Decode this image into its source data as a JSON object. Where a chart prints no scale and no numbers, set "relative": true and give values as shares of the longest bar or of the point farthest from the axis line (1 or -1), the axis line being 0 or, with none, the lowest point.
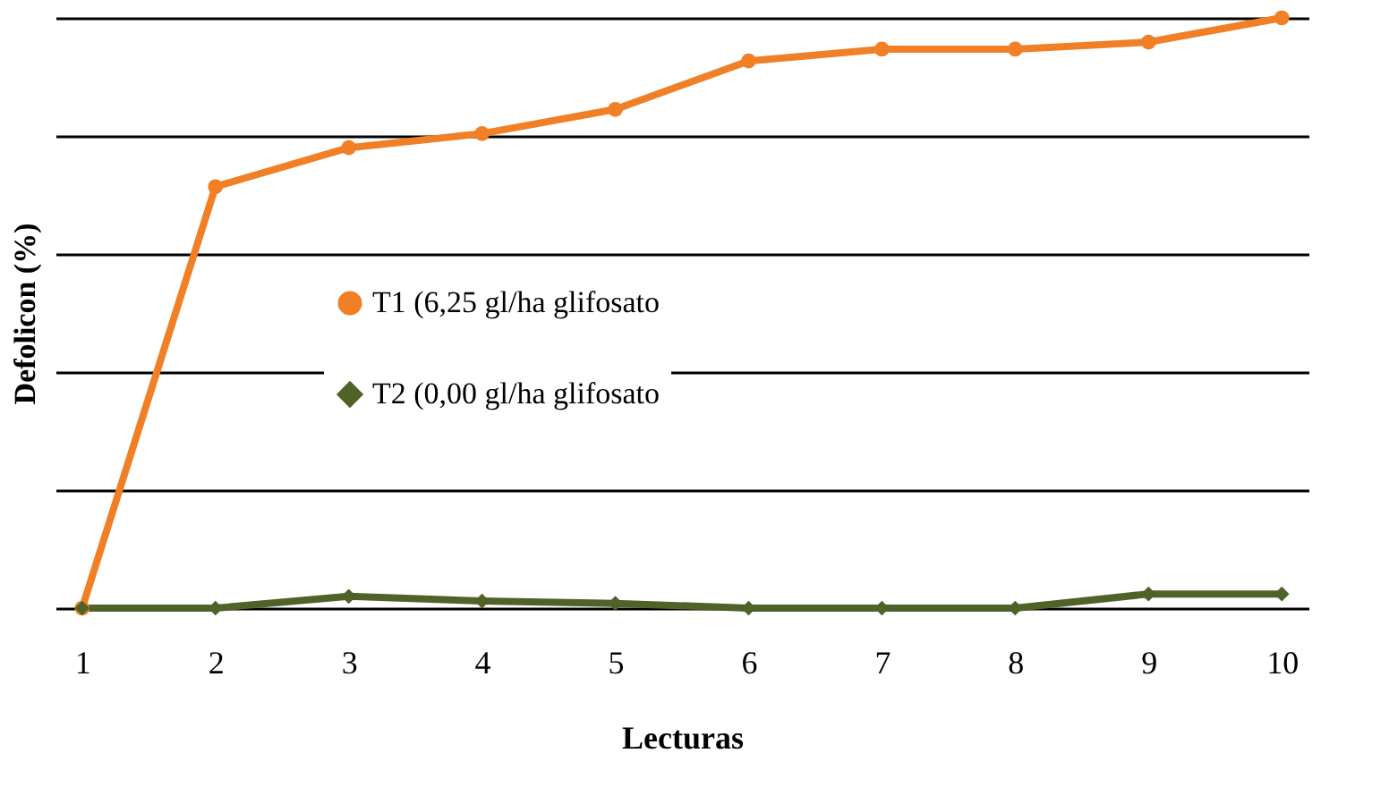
{
  "chart_data": {
    "type": "line",
    "relative": true,
    "xlabel": "Lecturas",
    "ylabel": "Defolicon (%)",
    "x": [
      1,
      2,
      3,
      4,
      5,
      6,
      7,
      8,
      9,
      10
    ],
    "xlim": [
      0.8,
      10.2
    ],
    "xticks": [
      1,
      2,
      3,
      4,
      5,
      6,
      7,
      8,
      9,
      10
    ],
    "series": [
      {
        "name": "T1 (6,25 gl/ha glifosato",
        "color": "#f07f26",
        "marker": "circle",
        "values": [
          0,
          0.714,
          0.78,
          0.804,
          0.845,
          0.927,
          0.947,
          0.947,
          0.959,
          1
        ]
      },
      {
        "name": "T2 (0,00 gl/ha glifosato",
        "color": "#4f6228",
        "marker": "diamond",
        "values": [
          0,
          0,
          0.02,
          0.012,
          0.008,
          0,
          0,
          0,
          0.024,
          0.024
        ]
      }
    ],
    "grid": "y",
    "legend": "left",
    "tick_labels": "x"
  }
}
